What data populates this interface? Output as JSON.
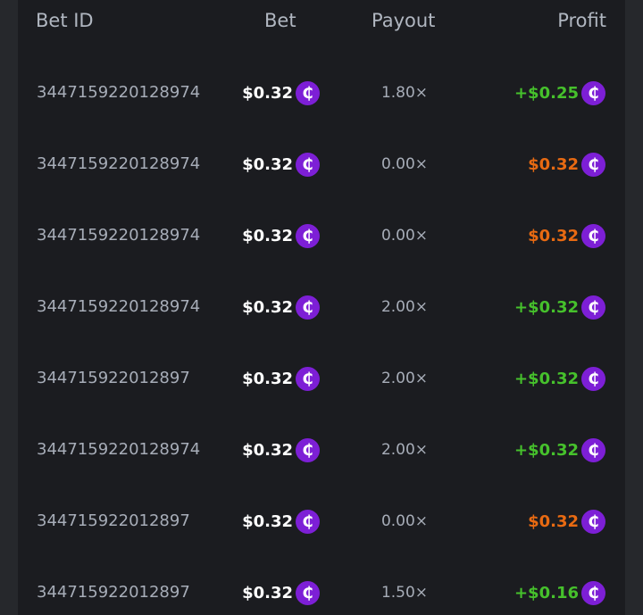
{
  "headers": {
    "bet_id": "Bet ID",
    "bet": "Bet",
    "payout": "Payout",
    "profit": "Profit"
  },
  "colors": {
    "win": "#46c12c",
    "loss": "#e86a12",
    "coin": "#7d1fd6"
  },
  "currency_icon": "cent-coin-icon",
  "rows": [
    {
      "id": "3447159220128974",
      "bet": "$0.32",
      "payout": "1.80×",
      "profit": "+$0.25",
      "win": true
    },
    {
      "id": "3447159220128974",
      "bet": "$0.32",
      "payout": "0.00×",
      "profit": "$0.32",
      "win": false
    },
    {
      "id": "3447159220128974",
      "bet": "$0.32",
      "payout": "0.00×",
      "profit": "$0.32",
      "win": false
    },
    {
      "id": "3447159220128974",
      "bet": "$0.32",
      "payout": "2.00×",
      "profit": "+$0.32",
      "win": true
    },
    {
      "id": "344715922012897",
      "bet": "$0.32",
      "payout": "2.00×",
      "profit": "+$0.32",
      "win": true
    },
    {
      "id": "3447159220128974",
      "bet": "$0.32",
      "payout": "2.00×",
      "profit": "+$0.32",
      "win": true
    },
    {
      "id": "344715922012897",
      "bet": "$0.32",
      "payout": "0.00×",
      "profit": "$0.32",
      "win": false
    },
    {
      "id": "344715922012897",
      "bet": "$0.32",
      "payout": "1.50×",
      "profit": "+$0.16",
      "win": true
    }
  ]
}
